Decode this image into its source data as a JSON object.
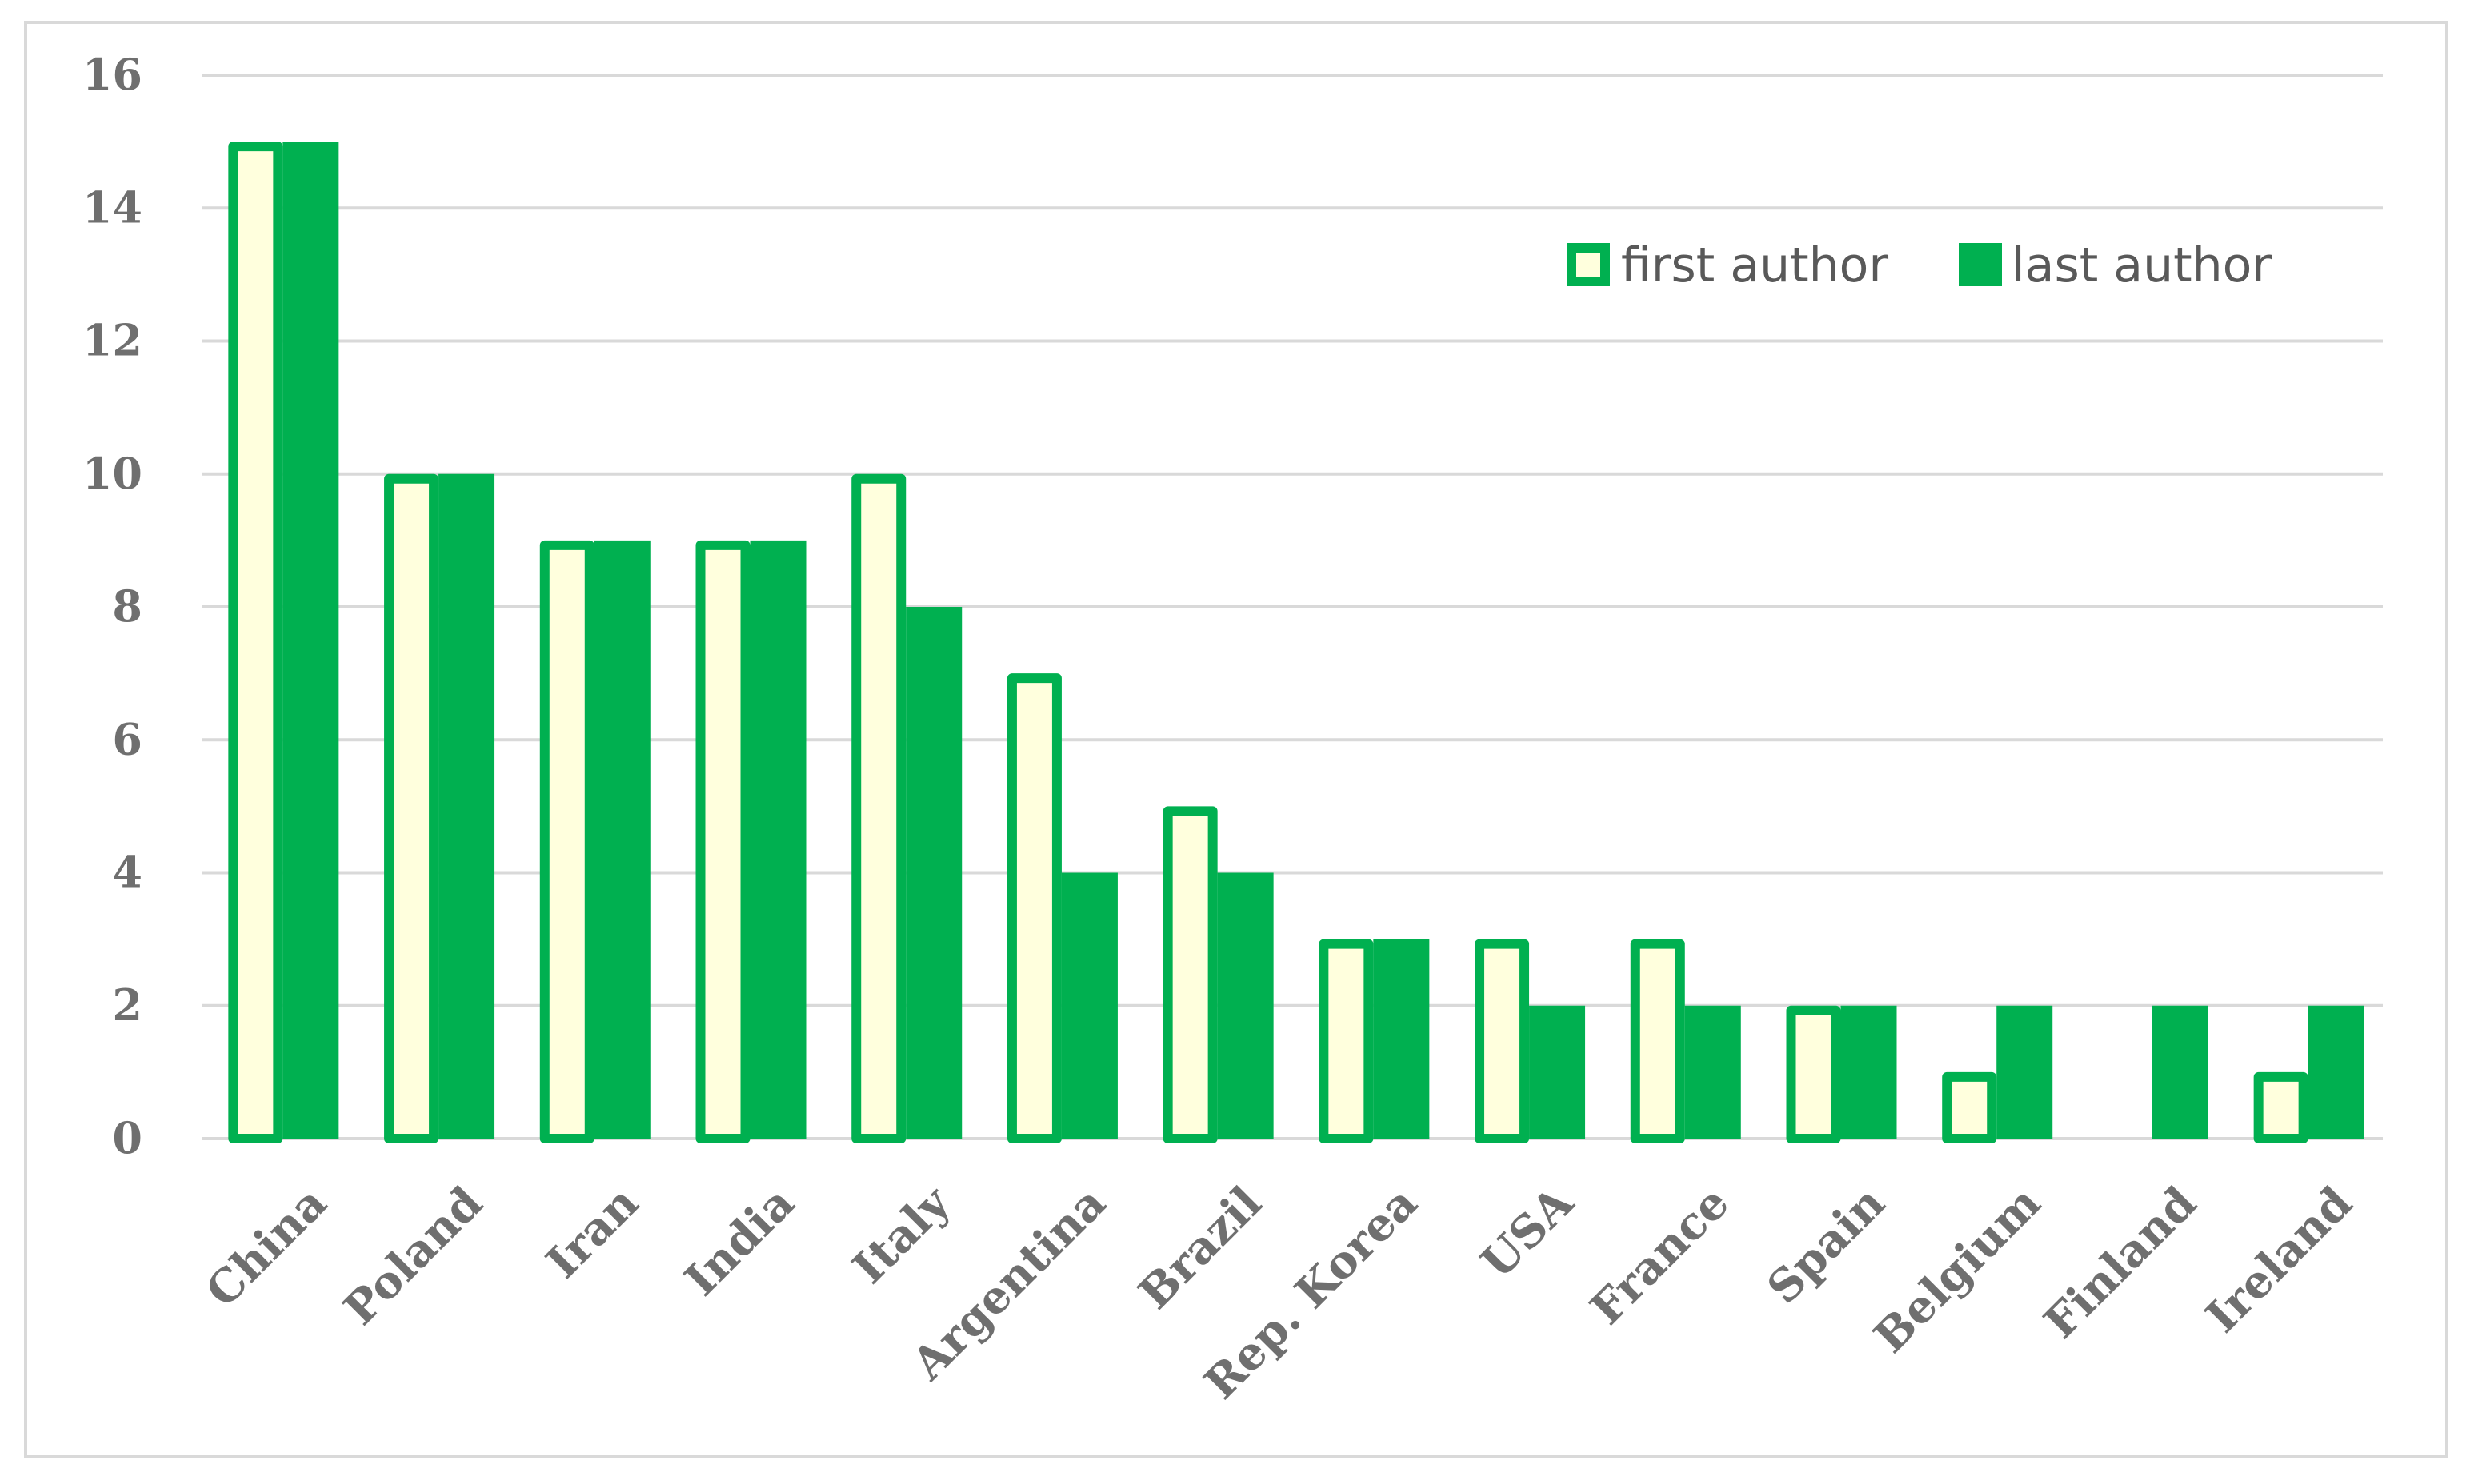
{
  "chart_data": {
    "type": "bar",
    "categories": [
      "China",
      "Poland",
      "Iran",
      "India",
      "Italy",
      "Argentina",
      "Brazil",
      "Rep. Korea",
      "USA",
      "France",
      "Spain",
      "Belgium",
      "Finland",
      "Ireland"
    ],
    "series": [
      {
        "name": "first author",
        "values": [
          15,
          10,
          9,
          9,
          10,
          7,
          5,
          3,
          3,
          3,
          2,
          1,
          0,
          1
        ],
        "fill": "#ffffdd",
        "stroke": "#00b050"
      },
      {
        "name": "last author",
        "values": [
          15,
          10,
          9,
          9,
          8,
          4,
          4,
          3,
          2,
          2,
          2,
          2,
          2,
          2
        ],
        "fill": "#00b050",
        "stroke": "#00b050"
      }
    ],
    "yticks": [
      "0",
      "2",
      "4",
      "6",
      "8",
      "10",
      "12",
      "14",
      "16"
    ],
    "ylim": [
      0,
      16
    ],
    "xlabel": "",
    "ylabel": "",
    "title": "",
    "grid": true,
    "legend_position": "top-right",
    "colors": {
      "grid": "#d9d9d9",
      "text": "#6f6f6f",
      "frame": "#d9d9d9"
    }
  }
}
